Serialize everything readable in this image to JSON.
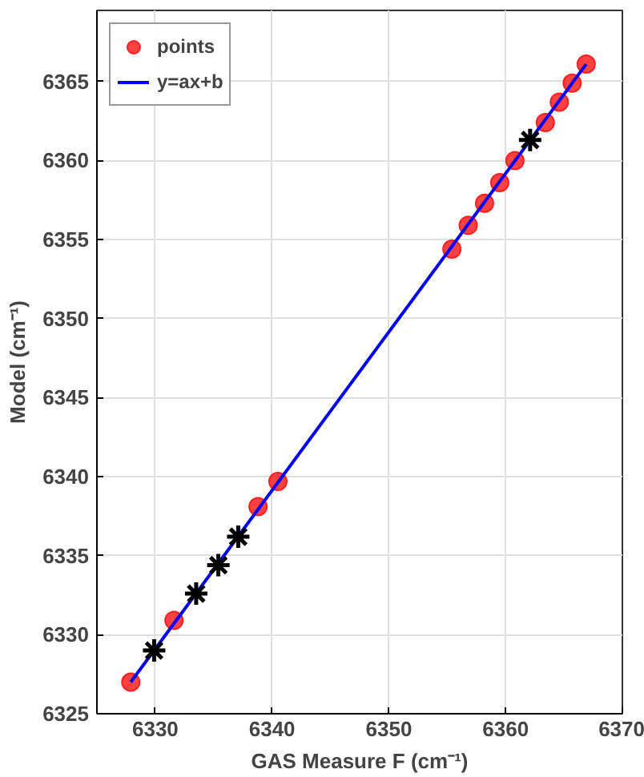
{
  "chart_data": {
    "type": "scatter",
    "xlabel": "GAS Measure F (cm⁻¹)",
    "ylabel": "Model (cm⁻¹)",
    "xlim": [
      6325,
      6370
    ],
    "ylim": [
      6325,
      6369.5
    ],
    "xticks": [
      6330,
      6340,
      6350,
      6360,
      6370
    ],
    "yticks": [
      6325,
      6330,
      6335,
      6340,
      6345,
      6350,
      6355,
      6360,
      6365
    ],
    "grid": true,
    "legend": "top left",
    "series": [
      {
        "name": "points",
        "marker": "circle",
        "color": "#ff2020",
        "x": [
          6327.9,
          6331.6,
          6338.8,
          6340.5,
          6355.4,
          6356.8,
          6358.2,
          6359.5,
          6360.8,
          6363.4,
          6364.6,
          6365.7,
          6366.9
        ],
        "values": [
          6327.0,
          6330.9,
          6338.1,
          6339.7,
          6354.4,
          6355.9,
          6357.3,
          6358.6,
          6360.0,
          6362.4,
          6363.7,
          6364.9,
          6366.1
        ]
      },
      {
        "name": "y=ax+b",
        "type": "line",
        "color": "#0000ff",
        "x": [
          6327.9,
          6366.9
        ],
        "values": [
          6327.0,
          6366.1
        ]
      },
      {
        "marker": "cross",
        "color": "#000000",
        "x": [
          6329.9,
          6333.5,
          6335.4,
          6337.1,
          6362.1
        ],
        "values": [
          6329.0,
          6332.6,
          6334.4,
          6336.2,
          6361.3
        ]
      }
    ]
  }
}
